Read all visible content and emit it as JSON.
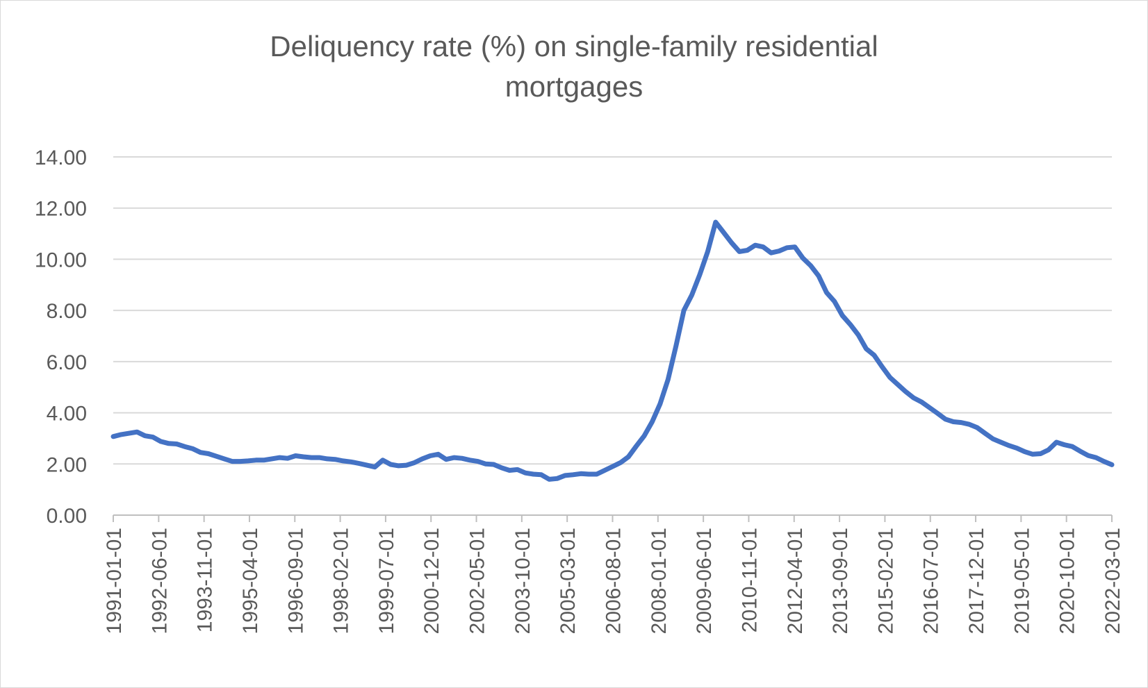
{
  "chart_data": {
    "type": "line",
    "title_lines": [
      "Deliquency rate (%) on single-family residential",
      "mortgages"
    ],
    "xlabel": "",
    "ylabel": "",
    "ylim": [
      0,
      14
    ],
    "yticks": [
      "0.00",
      "2.00",
      "4.00",
      "6.00",
      "8.00",
      "10.00",
      "12.00",
      "14.00"
    ],
    "xtick_labels": [
      "1991-01-01",
      "1992-06-01",
      "1993-11-01",
      "1995-04-01",
      "1996-09-01",
      "1998-02-01",
      "1999-07-01",
      "2000-12-01",
      "2002-05-01",
      "2003-10-01",
      "2005-03-01",
      "2006-08-01",
      "2008-01-01",
      "2009-06-01",
      "2010-11-01",
      "2012-04-01",
      "2013-09-01",
      "2015-02-01",
      "2016-07-01",
      "2017-12-01",
      "2019-05-01",
      "2020-10-01",
      "2022-03-01"
    ],
    "grid": true,
    "legend": "none",
    "series": [
      {
        "name": "Delinquency rate",
        "color": "#4472c4",
        "values": [
          3.07,
          3.15,
          3.2,
          3.25,
          3.1,
          3.05,
          2.88,
          2.8,
          2.78,
          2.68,
          2.6,
          2.45,
          2.4,
          2.3,
          2.2,
          2.1,
          2.1,
          2.12,
          2.15,
          2.15,
          2.2,
          2.25,
          2.22,
          2.32,
          2.28,
          2.25,
          2.25,
          2.2,
          2.18,
          2.12,
          2.08,
          2.02,
          1.95,
          1.88,
          2.15,
          1.98,
          1.93,
          1.95,
          2.05,
          2.2,
          2.32,
          2.38,
          2.18,
          2.25,
          2.22,
          2.15,
          2.1,
          2.0,
          1.98,
          1.85,
          1.75,
          1.78,
          1.65,
          1.6,
          1.58,
          1.4,
          1.43,
          1.55,
          1.58,
          1.62,
          1.6,
          1.6,
          1.75,
          1.9,
          2.05,
          2.28,
          2.7,
          3.1,
          3.65,
          4.35,
          5.3,
          6.6,
          8.0,
          8.6,
          9.4,
          10.3,
          11.45,
          11.05,
          10.65,
          10.3,
          10.35,
          10.55,
          10.48,
          10.25,
          10.32,
          10.45,
          10.48,
          10.05,
          9.75,
          9.35,
          8.7,
          8.35,
          7.8,
          7.45,
          7.05,
          6.5,
          6.25,
          5.8,
          5.38,
          5.1,
          4.82,
          4.58,
          4.42,
          4.2,
          3.98,
          3.75,
          3.65,
          3.62,
          3.55,
          3.42,
          3.2,
          2.98,
          2.85,
          2.72,
          2.62,
          2.48,
          2.38,
          2.4,
          2.55,
          2.85,
          2.75,
          2.68,
          2.5,
          2.33,
          2.25,
          2.1,
          1.97
        ]
      }
    ]
  }
}
